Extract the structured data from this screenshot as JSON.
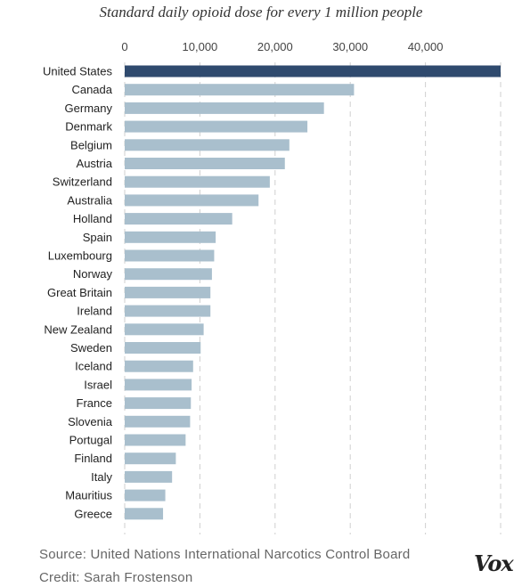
{
  "chart_data": {
    "type": "bar",
    "orientation": "horizontal",
    "title": "Standard daily opioid dose for every 1 million people",
    "xlim": [
      0,
      50000
    ],
    "xticks": [
      "0",
      "10,000",
      "20,000",
      "30,000",
      "40,000"
    ],
    "xtick_values": [
      0,
      10000,
      20000,
      30000,
      40000
    ],
    "grid": "vertical dashed",
    "categories": [
      "United States",
      "Canada",
      "Germany",
      "Denmark",
      "Belgium",
      "Austria",
      "Switzerland",
      "Australia",
      "Holland",
      "Spain",
      "Luxembourg",
      "Norway",
      "Great Britain",
      "Ireland",
      "New Zealand",
      "Sweden",
      "Iceland",
      "Israel",
      "France",
      "Slovenia",
      "Portugal",
      "Finland",
      "Italy",
      "Mauritius",
      "Greece"
    ],
    "values": [
      50000,
      30500,
      26500,
      24300,
      21900,
      21300,
      19300,
      17800,
      14300,
      12100,
      11900,
      11600,
      11400,
      11400,
      10500,
      10100,
      9100,
      8900,
      8800,
      8700,
      8100,
      6800,
      6300,
      5400,
      5100
    ],
    "colors": {
      "highlight": "#2f4a6e",
      "bar": "#a9bfcd",
      "grid": "#cfcfcf"
    }
  },
  "footer": {
    "source": "Source: United Nations International Narcotics Control Board",
    "credit": "Credit: Sarah Frostenson"
  },
  "logo_text": "Vox"
}
